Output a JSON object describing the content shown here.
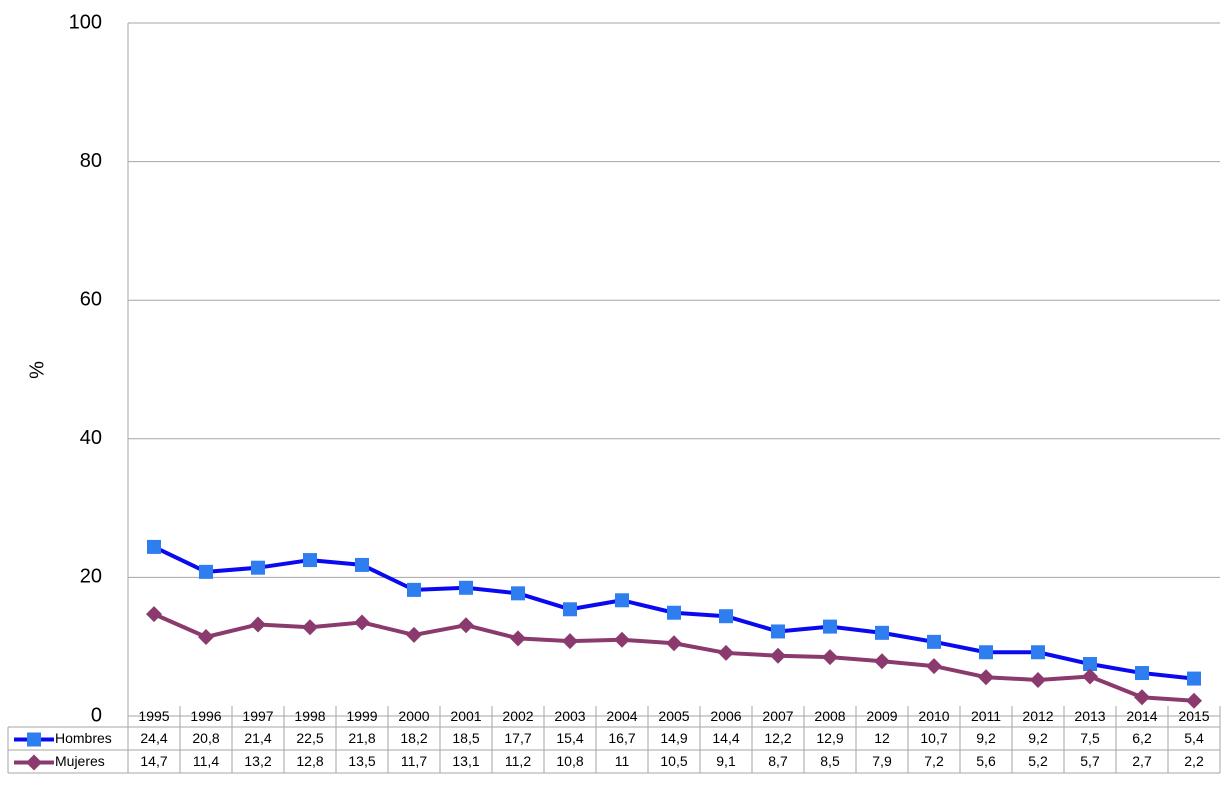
{
  "chart_data": {
    "type": "line",
    "y_label": "%",
    "categories": [
      "1995",
      "1996",
      "1997",
      "1998",
      "1999",
      "2000",
      "2001",
      "2002",
      "2003",
      "2004",
      "2005",
      "2006",
      "2007",
      "2008",
      "2009",
      "2010",
      "2011",
      "2012",
      "2013",
      "2014",
      "2015"
    ],
    "series": [
      {
        "name": "Hombres",
        "color": "#0a0af0",
        "marker": "square",
        "marker_color": "#2f7ef0",
        "values": [
          24.4,
          20.8,
          21.4,
          22.5,
          21.8,
          18.2,
          18.5,
          17.7,
          15.4,
          16.7,
          14.9,
          14.4,
          12.2,
          12.9,
          12,
          10.7,
          9.2,
          9.2,
          7.5,
          6.2,
          5.4
        ],
        "value_labels": [
          "24,4",
          "20,8",
          "21,4",
          "22,5",
          "21,8",
          "18,2",
          "18,5",
          "17,7",
          "15,4",
          "16,7",
          "14,9",
          "14,4",
          "12,2",
          "12,9",
          "12",
          "10,7",
          "9,2",
          "9,2",
          "7,5",
          "6,2",
          "5,4"
        ]
      },
      {
        "name": "Mujeres",
        "color": "#8b3a6e",
        "marker": "diamond",
        "marker_color": "#8b3a6e",
        "values": [
          14.7,
          11.4,
          13.2,
          12.8,
          13.5,
          11.7,
          13.1,
          11.2,
          10.8,
          11,
          10.5,
          9.1,
          8.7,
          8.5,
          7.9,
          7.2,
          5.6,
          5.2,
          5.7,
          2.7,
          2.2
        ],
        "value_labels": [
          "14,7",
          "11,4",
          "13,2",
          "12,8",
          "13,5",
          "11,7",
          "13,1",
          "11,2",
          "10,8",
          "11",
          "10,5",
          "9,1",
          "8,7",
          "8,5",
          "7,9",
          "7,2",
          "5,6",
          "5,2",
          "5,7",
          "2,7",
          "2,2"
        ]
      }
    ],
    "ylim": [
      0,
      100
    ],
    "yticks": [
      0,
      20,
      40,
      60,
      80,
      100
    ],
    "grid": true
  }
}
